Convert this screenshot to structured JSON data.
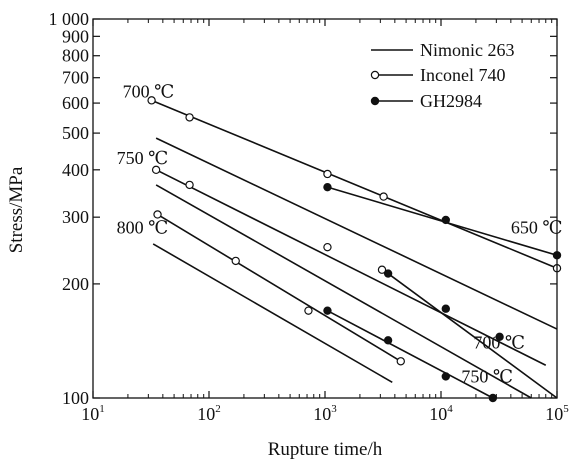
{
  "chart_data": {
    "type": "line",
    "xlabel": "Rupture time/h",
    "ylabel": "Stress/MPa",
    "x_scale": "log",
    "y_scale": "log",
    "xlim": [
      10,
      100000
    ],
    "ylim": [
      100,
      1000
    ],
    "x_ticks": [
      {
        "value": 10,
        "label_base": "10",
        "label_exp": "1"
      },
      {
        "value": 100,
        "label_base": "10",
        "label_exp": "2"
      },
      {
        "value": 1000,
        "label_base": "10",
        "label_exp": "3"
      },
      {
        "value": 10000,
        "label_base": "10",
        "label_exp": "4"
      },
      {
        "value": 100000,
        "label_base": "10",
        "label_exp": "5"
      }
    ],
    "y_ticks": [
      {
        "value": 100,
        "label": "100"
      },
      {
        "value": 200,
        "label": "200"
      },
      {
        "value": 300,
        "label": "300"
      },
      {
        "value": 400,
        "label": "400"
      },
      {
        "value": 500,
        "label": "500"
      },
      {
        "value": 600,
        "label": "600"
      },
      {
        "value": 700,
        "label": "700"
      },
      {
        "value": 800,
        "label": "800"
      },
      {
        "value": 900,
        "label": "900"
      },
      {
        "value": 1000,
        "label": "1 000"
      }
    ],
    "grid": false,
    "legend_position": "top-right",
    "legend": [
      {
        "label": "Nimonic 263",
        "marker": "none"
      },
      {
        "label": "Inconel 740",
        "marker": "open-circle"
      },
      {
        "label": "GH2984",
        "marker": "filled-circle"
      }
    ],
    "series": [
      {
        "name": "Inconel 740",
        "marker": "open-circle",
        "line": [
          [
            32,
            610
          ],
          [
            100000,
            220
          ]
        ],
        "points": [
          [
            32,
            610
          ],
          [
            68,
            550
          ],
          [
            1050,
            390
          ],
          [
            3200,
            340
          ],
          [
            100000,
            220
          ]
        ]
      },
      {
        "name": "Nimonic 263",
        "marker": "none",
        "line": [
          [
            35,
            485
          ],
          [
            100000,
            152
          ]
        ],
        "points": []
      },
      {
        "name": "Inconel 740",
        "marker": "open-circle",
        "line": [
          [
            35,
            400
          ],
          [
            80000,
            122
          ]
        ],
        "points": [
          [
            35,
            400
          ],
          [
            68,
            365
          ],
          [
            1050,
            250
          ],
          [
            3100,
            218
          ]
        ]
      },
      {
        "name": "Nimonic 263",
        "marker": "none",
        "line": [
          [
            35,
            365
          ],
          [
            60000,
            100
          ]
        ],
        "points": []
      },
      {
        "name": "Inconel 740",
        "marker": "open-circle",
        "line": [
          [
            36,
            305
          ],
          [
            4500,
            125
          ]
        ],
        "points": [
          [
            36,
            305
          ],
          [
            170,
            230
          ],
          [
            720,
            170
          ],
          [
            4500,
            125
          ]
        ]
      },
      {
        "name": "Nimonic 263",
        "marker": "none",
        "line": [
          [
            33,
            255
          ],
          [
            3800,
            110
          ]
        ],
        "points": []
      },
      {
        "name": "GH2984",
        "marker": "filled-circle",
        "line": [
          [
            1050,
            360
          ],
          [
            100000,
            238
          ]
        ],
        "points": [
          [
            1050,
            360
          ],
          [
            11000,
            295
          ],
          [
            100000,
            238
          ]
        ]
      },
      {
        "name": "GH2984",
        "marker": "filled-circle",
        "line": [
          [
            3500,
            213
          ],
          [
            100000,
            100
          ]
        ],
        "points": [
          [
            3500,
            213
          ],
          [
            11000,
            172
          ],
          [
            32000,
            145
          ]
        ]
      },
      {
        "name": "GH2984",
        "marker": "filled-circle",
        "line": [
          [
            1050,
            170
          ],
          [
            28000,
            100
          ]
        ],
        "points": [
          [
            1050,
            170
          ],
          [
            3500,
            142
          ],
          [
            11000,
            114
          ],
          [
            28000,
            100
          ]
        ]
      }
    ],
    "annotations": [
      {
        "text": "700 ℃",
        "x": 18,
        "y": 620
      },
      {
        "text": "750 ℃",
        "x": 16,
        "y": 415
      },
      {
        "text": "800 ℃",
        "x": 16,
        "y": 272
      },
      {
        "text": "650 ℃",
        "x": 40000,
        "y": 272
      },
      {
        "text": "700 ℃",
        "x": 19000,
        "y": 135
      },
      {
        "text": "750 ℃",
        "x": 15000,
        "y": 110
      }
    ]
  }
}
